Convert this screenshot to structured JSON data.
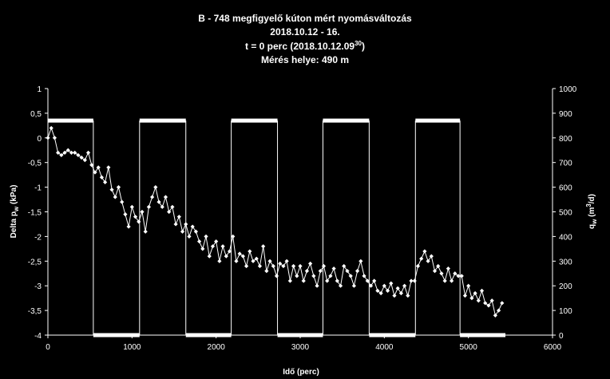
{
  "chart_data": {
    "type": "line",
    "title_lines": [
      "B - 748 megfigyelő kúton mért nyomásváltozás",
      "2018.10.12 - 16."
    ],
    "title_line3_prefix": "t = 0 perc (2018.10.12.09",
    "title_line3_sup": "30",
    "title_line3_suffix": ")",
    "title_line4": "Mérés helye: 490 m",
    "xlabel": "Idő (perc)",
    "ylabel_left_main": "Delta p",
    "ylabel_left_sub": "w",
    "ylabel_left_unit": " (kPa)",
    "ylabel_right_main": "q",
    "ylabel_right_sub": "w",
    "ylabel_right_unit": " (m",
    "ylabel_right_sup": "3",
    "ylabel_right_end": "/d)",
    "xlim": [
      0,
      6000
    ],
    "ylim_left": [
      -4,
      1
    ],
    "ylim_right": [
      0,
      1000
    ],
    "x_ticks": [
      0,
      1000,
      2000,
      3000,
      4000,
      5000,
      6000
    ],
    "y_left_ticks": [
      "1",
      "0,5",
      "0",
      "-0,5",
      "-1",
      "-1,5",
      "-2",
      "-2,5",
      "-3",
      "-3,5",
      "-4"
    ],
    "y_right_ticks": [
      "1000",
      "900",
      "800",
      "700",
      "600",
      "500",
      "400",
      "300",
      "200",
      "100",
      "0"
    ],
    "grid": false,
    "legend": "none",
    "series": [
      {
        "axis": "right",
        "style": "step-thick",
        "x": [
          0,
          540,
          540,
          1090,
          1090,
          1640,
          1640,
          2180,
          2180,
          2730,
          2730,
          3270,
          3270,
          3820,
          3820,
          4370,
          4370,
          4900,
          4900,
          5440
        ],
        "values": [
          870,
          870,
          0,
          0,
          870,
          870,
          0,
          0,
          870,
          870,
          0,
          0,
          870,
          870,
          0,
          0,
          870,
          870,
          0,
          0
        ]
      },
      {
        "axis": "left",
        "style": "line-diamond",
        "x": [
          0,
          40,
          80,
          120,
          160,
          200,
          240,
          280,
          320,
          360,
          400,
          440,
          480,
          520,
          560,
          600,
          640,
          680,
          720,
          760,
          800,
          840,
          880,
          920,
          960,
          1000,
          1040,
          1080,
          1120,
          1160,
          1200,
          1240,
          1280,
          1320,
          1360,
          1400,
          1440,
          1480,
          1520,
          1560,
          1600,
          1640,
          1680,
          1720,
          1760,
          1800,
          1840,
          1880,
          1920,
          1960,
          2000,
          2040,
          2080,
          2120,
          2160,
          2200,
          2240,
          2280,
          2320,
          2360,
          2400,
          2440,
          2480,
          2520,
          2560,
          2600,
          2640,
          2680,
          2720,
          2760,
          2800,
          2840,
          2880,
          2920,
          2960,
          3000,
          3040,
          3080,
          3120,
          3160,
          3200,
          3240,
          3280,
          3320,
          3360,
          3400,
          3440,
          3480,
          3520,
          3560,
          3600,
          3640,
          3680,
          3720,
          3760,
          3800,
          3840,
          3880,
          3920,
          3960,
          4000,
          4040,
          4080,
          4120,
          4160,
          4200,
          4240,
          4280,
          4320,
          4360,
          4400,
          4440,
          4480,
          4520,
          4560,
          4600,
          4640,
          4680,
          4720,
          4760,
          4800,
          4840,
          4880,
          4920,
          4960,
          5000,
          5040,
          5080,
          5120,
          5160,
          5200,
          5240,
          5280,
          5320,
          5360,
          5400
        ],
        "values": [
          0.0,
          0.2,
          0.0,
          -0.3,
          -0.35,
          -0.3,
          -0.25,
          -0.3,
          -0.3,
          -0.35,
          -0.4,
          -0.45,
          -0.3,
          -0.55,
          -0.7,
          -0.6,
          -0.8,
          -0.9,
          -0.6,
          -1.05,
          -1.2,
          -1.0,
          -1.3,
          -1.55,
          -1.8,
          -1.4,
          -1.6,
          -1.7,
          -1.5,
          -1.9,
          -1.4,
          -1.2,
          -1.0,
          -1.3,
          -1.4,
          -1.2,
          -1.5,
          -1.4,
          -1.75,
          -1.6,
          -1.9,
          -1.75,
          -2.0,
          -1.8,
          -1.9,
          -2.1,
          -2.25,
          -2.0,
          -2.4,
          -2.2,
          -2.1,
          -2.5,
          -2.2,
          -2.4,
          -2.3,
          -2.0,
          -2.5,
          -2.35,
          -2.4,
          -2.6,
          -2.3,
          -2.5,
          -2.45,
          -2.6,
          -2.2,
          -2.7,
          -2.5,
          -2.6,
          -2.8,
          -2.55,
          -2.6,
          -2.5,
          -2.9,
          -2.6,
          -2.8,
          -2.6,
          -2.9,
          -2.7,
          -2.55,
          -2.8,
          -3.0,
          -2.7,
          -2.6,
          -2.9,
          -2.8,
          -2.65,
          -2.9,
          -3.0,
          -2.6,
          -2.7,
          -2.8,
          -3.0,
          -2.7,
          -2.5,
          -2.8,
          -2.9,
          -3.0,
          -2.9,
          -3.1,
          -3.15,
          -3.0,
          -3.1,
          -2.95,
          -3.2,
          -3.05,
          -3.15,
          -3.0,
          -3.2,
          -2.9,
          -2.9,
          -2.6,
          -2.45,
          -2.3,
          -2.5,
          -2.4,
          -2.7,
          -2.6,
          -2.75,
          -2.9,
          -2.65,
          -2.9,
          -2.75,
          -2.8,
          -2.8,
          -3.2,
          -3.0,
          -3.25,
          -3.15,
          -3.3,
          -3.1,
          -3.35,
          -3.4,
          -3.3,
          -3.6,
          -3.5,
          -3.35
        ]
      }
    ]
  }
}
